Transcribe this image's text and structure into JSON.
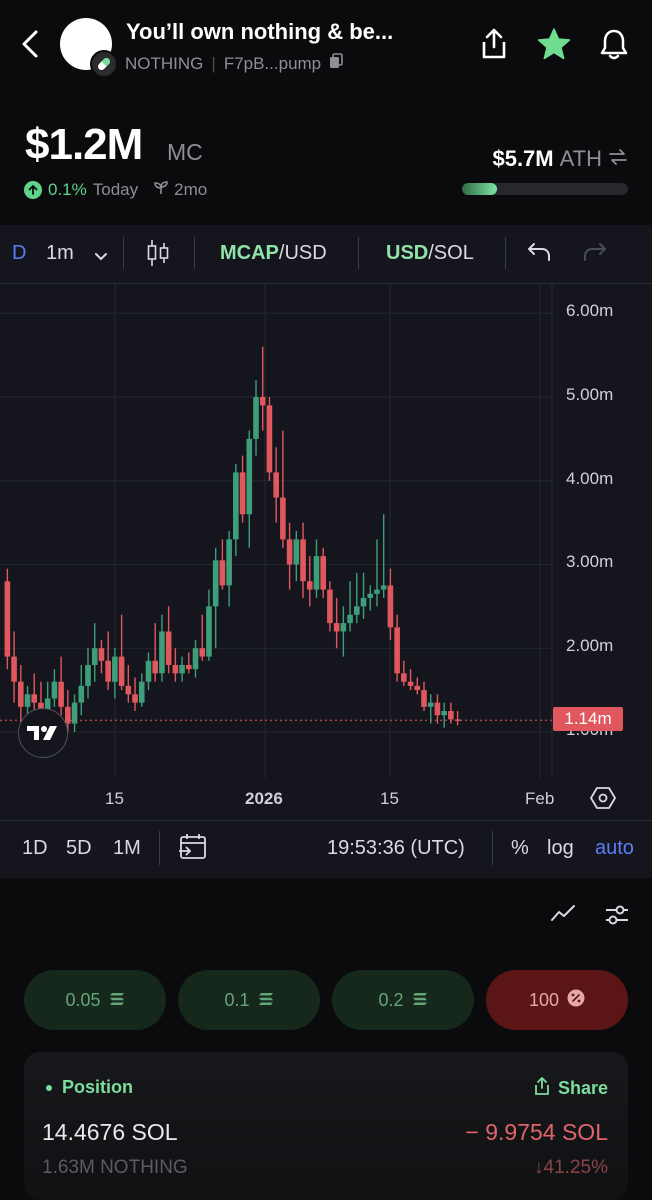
{
  "header": {
    "token_name": "You’ll own nothing & be...",
    "ticker": "NOTHING",
    "address": "F7pB...pump",
    "icons": [
      "back-arrow-icon",
      "share-icon",
      "star-icon",
      "bell-icon",
      "copy-icon",
      "pill-icon"
    ]
  },
  "price": {
    "market_cap": "$1.2M",
    "market_cap_label": "MC",
    "change_pct": "0.1%",
    "change_period": "Today",
    "age": "2mo",
    "ath_value": "$5.7M",
    "ath_label": "ATH",
    "ath_progress": 0.21
  },
  "chart_toolbar": {
    "d_label": "D",
    "interval": "1m",
    "mcap_label": "MCAP",
    "mcap_suffix": "/USD",
    "usd_label": "USD",
    "usd_suffix": "/SOL"
  },
  "chart_data": {
    "type": "candlestick",
    "y_ticks": [
      "6.00m",
      "5.00m",
      "4.00m",
      "3.00m",
      "2.00m",
      "1.00m"
    ],
    "y_tick_values": [
      6,
      5,
      4,
      3,
      2,
      1
    ],
    "x_ticks": [
      "15",
      "2026",
      "15",
      "Feb"
    ],
    "current_price_label": "1.14m",
    "current_price": 1.14,
    "ylim": [
      0.45,
      6.35
    ],
    "colors": {
      "up": "#3e9e79",
      "down": "#e0585d"
    },
    "candles": [
      [
        2.8,
        2.95,
        1.75,
        1.9
      ],
      [
        1.9,
        2.2,
        1.35,
        1.6
      ],
      [
        1.6,
        1.8,
        0.95,
        1.3
      ],
      [
        1.3,
        1.55,
        1.05,
        1.45
      ],
      [
        1.45,
        1.7,
        1.25,
        1.35
      ],
      [
        1.35,
        1.6,
        1.1,
        1.2
      ],
      [
        1.2,
        1.6,
        1.1,
        1.4
      ],
      [
        1.4,
        1.75,
        1.3,
        1.6
      ],
      [
        1.6,
        1.9,
        1.2,
        1.3
      ],
      [
        1.3,
        1.5,
        1.0,
        1.1
      ],
      [
        1.1,
        1.45,
        1.0,
        1.35
      ],
      [
        1.35,
        1.8,
        1.2,
        1.55
      ],
      [
        1.55,
        2.0,
        1.4,
        1.8
      ],
      [
        1.8,
        2.3,
        1.6,
        2.0
      ],
      [
        2.0,
        2.1,
        1.7,
        1.85
      ],
      [
        1.85,
        2.2,
        1.5,
        1.6
      ],
      [
        1.6,
        2.0,
        1.4,
        1.9
      ],
      [
        1.9,
        2.4,
        1.5,
        1.55
      ],
      [
        1.55,
        1.8,
        1.35,
        1.45
      ],
      [
        1.45,
        1.65,
        1.25,
        1.35
      ],
      [
        1.35,
        1.7,
        1.3,
        1.6
      ],
      [
        1.6,
        1.95,
        1.5,
        1.85
      ],
      [
        1.85,
        2.3,
        1.6,
        1.7
      ],
      [
        1.7,
        2.4,
        1.6,
        2.2
      ],
      [
        2.2,
        2.5,
        1.7,
        1.8
      ],
      [
        1.8,
        2.0,
        1.6,
        1.7
      ],
      [
        1.7,
        1.9,
        1.6,
        1.8
      ],
      [
        1.8,
        1.95,
        1.7,
        1.75
      ],
      [
        1.75,
        2.1,
        1.65,
        2.0
      ],
      [
        2.0,
        2.4,
        1.85,
        1.9
      ],
      [
        1.9,
        2.7,
        1.85,
        2.5
      ],
      [
        2.5,
        3.2,
        2.0,
        3.05
      ],
      [
        3.05,
        3.3,
        2.7,
        2.75
      ],
      [
        2.75,
        3.4,
        2.5,
        3.3
      ],
      [
        3.3,
        4.2,
        3.1,
        4.1
      ],
      [
        4.1,
        4.3,
        3.5,
        3.6
      ],
      [
        3.6,
        4.6,
        3.2,
        4.5
      ],
      [
        4.5,
        5.2,
        4.3,
        5.0
      ],
      [
        5.0,
        5.6,
        4.6,
        4.9
      ],
      [
        4.9,
        5.0,
        4.0,
        4.1
      ],
      [
        4.1,
        4.4,
        3.5,
        3.8
      ],
      [
        3.8,
        4.6,
        3.2,
        3.3
      ],
      [
        3.3,
        3.5,
        2.7,
        3.0
      ],
      [
        3.0,
        3.4,
        2.8,
        3.3
      ],
      [
        3.3,
        3.5,
        2.6,
        2.8
      ],
      [
        2.8,
        3.1,
        2.5,
        2.7
      ],
      [
        2.7,
        3.3,
        2.6,
        3.1
      ],
      [
        3.1,
        3.2,
        2.6,
        2.7
      ],
      [
        2.7,
        2.8,
        2.2,
        2.3
      ],
      [
        2.3,
        2.6,
        2.0,
        2.2
      ],
      [
        2.2,
        2.5,
        1.9,
        2.3
      ],
      [
        2.3,
        2.8,
        2.2,
        2.4
      ],
      [
        2.4,
        2.9,
        2.3,
        2.5
      ],
      [
        2.5,
        2.9,
        2.35,
        2.6
      ],
      [
        2.6,
        2.75,
        2.45,
        2.65
      ],
      [
        2.65,
        3.3,
        2.5,
        2.7
      ],
      [
        2.7,
        3.6,
        2.6,
        2.75
      ],
      [
        2.75,
        2.95,
        2.1,
        2.25
      ],
      [
        2.25,
        2.4,
        1.6,
        1.7
      ],
      [
        1.7,
        1.85,
        1.55,
        1.6
      ],
      [
        1.6,
        1.75,
        1.5,
        1.55
      ],
      [
        1.55,
        1.65,
        1.45,
        1.5
      ],
      [
        1.5,
        1.6,
        1.25,
        1.3
      ],
      [
        1.3,
        1.45,
        1.1,
        1.35
      ],
      [
        1.35,
        1.45,
        1.1,
        1.2
      ],
      [
        1.2,
        1.35,
        1.05,
        1.25
      ],
      [
        1.25,
        1.35,
        1.1,
        1.15
      ],
      [
        1.15,
        1.25,
        1.08,
        1.14
      ]
    ]
  },
  "chart_bottom": {
    "ranges": [
      "1D",
      "5D",
      "1M"
    ],
    "clock": "19:53:36 (UTC)",
    "percent": "%",
    "log": "log",
    "auto": "auto"
  },
  "amounts": [
    {
      "label": "0.05",
      "kind": "buy"
    },
    {
      "label": "0.1",
      "kind": "buy"
    },
    {
      "label": "0.2",
      "kind": "buy"
    },
    {
      "label": "100",
      "kind": "sell"
    }
  ],
  "position": {
    "title": "Position",
    "share": "Share",
    "sol_amount": "14.4676 SOL",
    "pnl_sol": "− 9.9754 SOL",
    "token_amount": "1.63M NOTHING",
    "pnl_pct": "↓41.25%"
  }
}
